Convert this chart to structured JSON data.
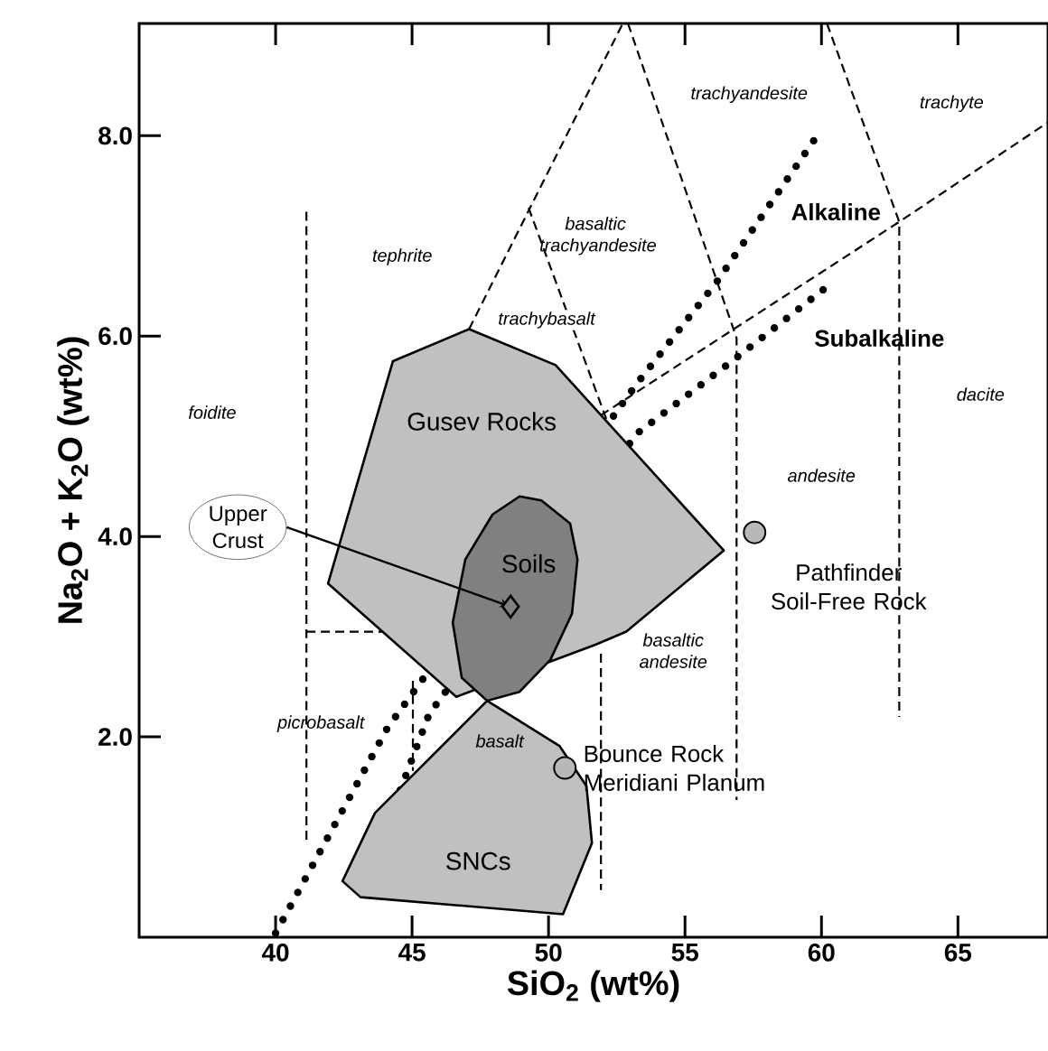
{
  "chart_data": {
    "type": "scatter",
    "xlabel": "SiO$_{2}$ (wt%)",
    "ylabel": "Na$_{2}$O + K$_{2}$O (wt%)",
    "xlim": [
      35,
      68.3
    ],
    "ylim": [
      0,
      9.12
    ],
    "xticks": [
      40,
      45,
      50,
      55,
      60,
      65
    ],
    "yticks": [
      {
        "value": 2,
        "label": "2.0"
      },
      {
        "value": 4,
        "label": "4.0"
      },
      {
        "value": 6,
        "label": "6.0"
      },
      {
        "value": 8,
        "label": "8.0"
      }
    ],
    "series": [
      {
        "type": "line",
        "line_style": "dashed",
        "color": "#000000",
        "x": [
          41.13,
          41.13
        ],
        "values": [
          7.24,
          0.94
        ]
      },
      {
        "type": "line",
        "line_style": "dashed",
        "color": "#000000",
        "x": [
          41.13,
          43.97
        ],
        "values": [
          3.05,
          3.05
        ]
      },
      {
        "type": "line",
        "line_style": "dashed",
        "color": "#000000",
        "x": [
          45.03,
          45.03
        ],
        "values": [
          2.56,
          1.66
        ]
      },
      {
        "type": "line",
        "line_style": "dashed",
        "color": "#000000",
        "x": [
          47.09,
          52.72
        ],
        "values": [
          6.07,
          9.12
        ]
      },
      {
        "type": "line",
        "line_style": "dashed",
        "color": "#000000",
        "x": [
          52.91,
          56.89,
          56.89
        ],
        "values": [
          9.12,
          5.98,
          1.37
        ]
      },
      {
        "type": "line",
        "line_style": "dashed",
        "color": "#000000",
        "x": [
          49.27,
          52.12
        ],
        "values": [
          7.28,
          5.17
        ]
      },
      {
        "type": "line",
        "line_style": "dashed",
        "color": "#000000",
        "x": [
          51.92,
          51.92
        ],
        "values": [
          2.83,
          0.47
        ]
      },
      {
        "type": "line",
        "line_style": "dashed",
        "color": "#000000",
        "x": [
          60.2,
          62.85,
          62.85
        ],
        "values": [
          9.12,
          7.14,
          2.2
        ]
      },
      {
        "type": "line",
        "line_style": "dashed",
        "color": "#000000",
        "x": [
          51.92,
          62.85,
          68.28
        ],
        "values": [
          5.21,
          7.14,
          8.13
        ]
      },
      {
        "type": "line",
        "line_style": "dotted",
        "color": "#000000",
        "x": [
          40,
          44.1,
          53.25,
          56.16,
          59.74
        ],
        "values": [
          0.04,
          2.09,
          5.53,
          6.54,
          7.96
        ]
      },
      {
        "type": "line",
        "line_style": "dotted",
        "color": "#000000",
        "x": [
          44.57,
          45.63,
          53.25,
          56.82,
          60.33
        ],
        "values": [
          1.47,
          2.23,
          5.03,
          5.77,
          6.52
        ]
      },
      {
        "type": "area",
        "color": "#c0c0c0",
        "x": [
          44.3,
          47.09,
          50.26,
          56.42,
          52.85,
          51.72,
          46.62,
          41.92
        ],
        "values": [
          5.75,
          6.07,
          5.71,
          3.86,
          3.05,
          2.92,
          2.4,
          3.53
        ]
      },
      {
        "type": "area",
        "color": "#c0c0c0",
        "x": [
          47.75,
          50.4,
          51.39,
          51.59,
          50.53,
          43.11,
          42.45,
          43.64
        ],
        "values": [
          2.36,
          1.91,
          1.51,
          0.94,
          0.23,
          0.4,
          0.56,
          1.24
        ]
      },
      {
        "type": "area",
        "color": "#808080",
        "x": [
          49.74,
          50.79,
          51.06,
          50.86,
          50.07,
          48.94,
          47.75,
          46.82,
          46.49,
          46.95,
          47.95,
          48.94
        ],
        "values": [
          4.36,
          4.13,
          3.77,
          3.23,
          2.77,
          2.45,
          2.36,
          2.59,
          3.14,
          3.77,
          4.22,
          4.4
        ]
      },
      {
        "marker": "diamond",
        "color": "#808080",
        "x": [
          48.61
        ],
        "values": [
          3.3
        ]
      },
      {
        "marker": "circle",
        "color": "#b8b8b8",
        "x": [
          57.55,
          50.6
        ],
        "values": [
          4.04,
          1.69
        ]
      }
    ],
    "annotations": [
      "foidite",
      "tephrite",
      "trachybasalt",
      "basaltic trachyandesite",
      "trachyandesite",
      "trachyte",
      "Alkaline",
      "Subalkaline",
      "dacite",
      "andesite",
      "basaltic andesite",
      "picrobasalt",
      "basalt",
      "Gusev Rocks",
      {
        "text": "Soils",
        "x": 49.27,
        "y": 3.73
      },
      "SNCs",
      {
        "text": "Pathfinder Soil-Free Rock",
        "x": 57.55,
        "y": 4.04
      },
      {
        "text": "Bounce Rock Meridiani Planum",
        "x": 50.6,
        "y": 1.69
      },
      {
        "text": "Upper Crust",
        "x": 48.61,
        "y": 3.3
      }
    ]
  }
}
